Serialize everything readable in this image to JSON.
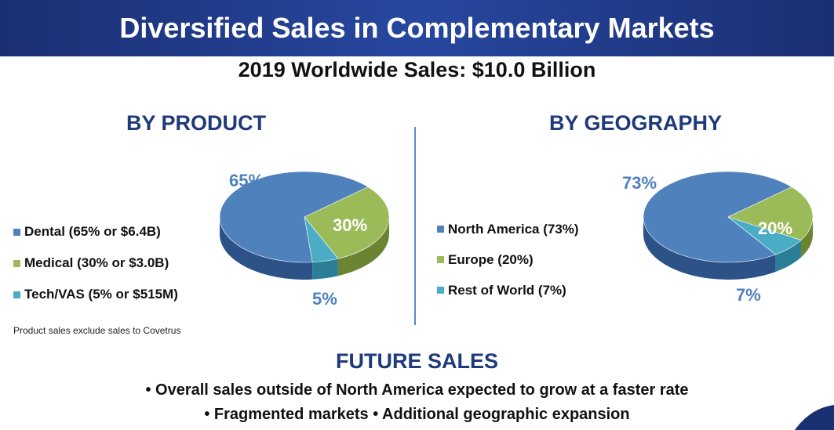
{
  "title": "Diversified Sales in Complementary Markets",
  "subtitle": "2019 Worldwide Sales: $10.0 Billion",
  "product": {
    "heading": "BY PRODUCT",
    "legend": [
      "Dental (65% or $6.4B)",
      "Medical (30% or $3.0B)",
      "Tech/VAS (5% or $515M)"
    ],
    "labels": [
      "65%",
      "30%",
      "5%"
    ],
    "footnote": "Product sales exclude sales to Covetrus"
  },
  "geography": {
    "heading": "BY GEOGRAPHY",
    "legend": [
      "North America (73%)",
      "Europe (20%)",
      "Rest of World (7%)"
    ],
    "labels": [
      "73%",
      "20%",
      "7%"
    ]
  },
  "future": {
    "heading": "FUTURE SALES",
    "line1": "• Overall sales outside of North America expected to grow at a faster rate",
    "line2": "• Fragmented markets • Additional geographic expansion"
  },
  "colors": {
    "blue": "#4f81bd",
    "green": "#9bbb59",
    "teal": "#4bacc6",
    "navy": "#1f3a7a"
  },
  "chart_data": [
    {
      "type": "pie",
      "title": "BY PRODUCT",
      "categories": [
        "Dental",
        "Medical",
        "Tech/VAS"
      ],
      "values": [
        65,
        30,
        5
      ],
      "legend": "left"
    },
    {
      "type": "pie",
      "title": "BY GEOGRAPHY",
      "categories": [
        "North America",
        "Europe",
        "Rest of World"
      ],
      "values": [
        73,
        20,
        7
      ],
      "legend": "left"
    }
  ]
}
